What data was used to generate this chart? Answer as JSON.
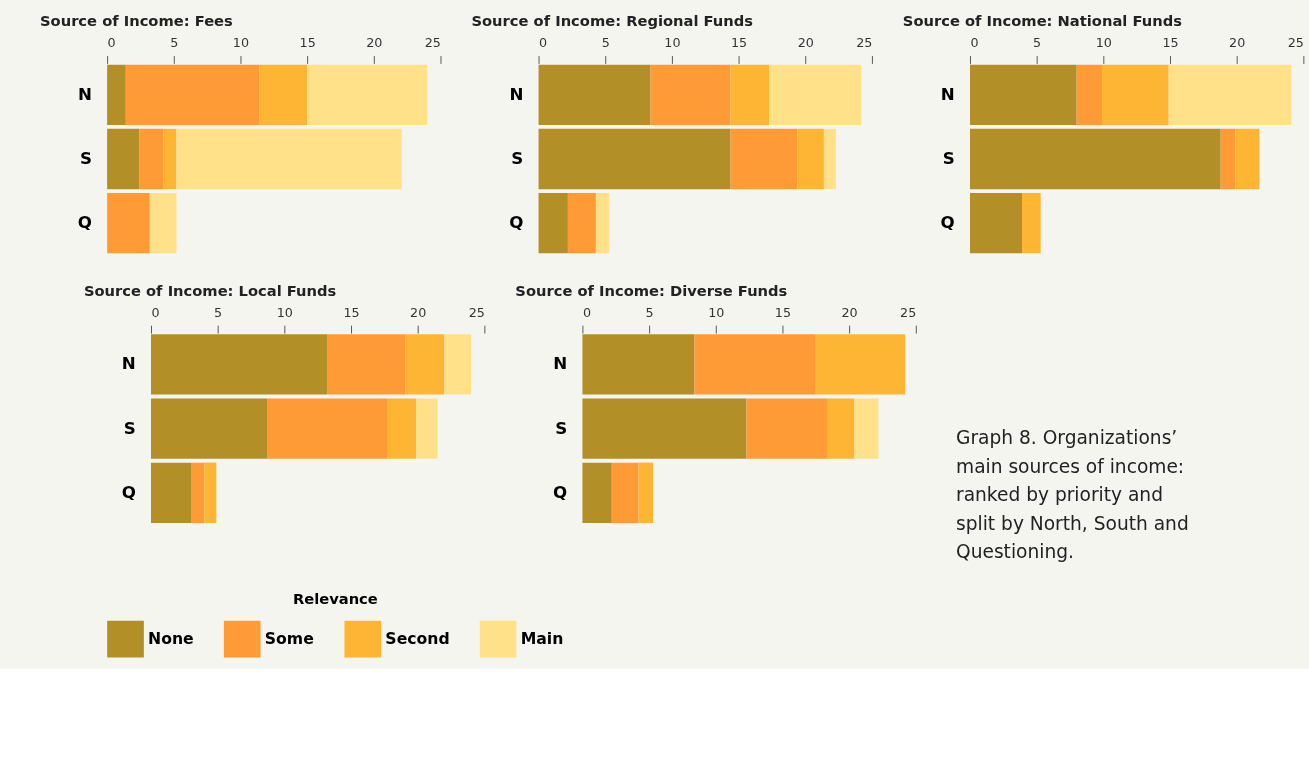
{
  "chart_data": [
    {
      "type": "bar",
      "orientation": "horizontal",
      "stacked": true,
      "title": "Source of Income: Fees",
      "categories": [
        "N",
        "S",
        "Q"
      ],
      "xlim": [
        0,
        25
      ],
      "xticks": [
        0,
        5,
        10,
        15,
        20,
        25
      ],
      "grid": false,
      "legend": "bottom",
      "legend_title": "Relevance",
      "series": [
        {
          "name": "None",
          "color": "#b38f28",
          "values": [
            1.4,
            2.4,
            0
          ]
        },
        {
          "name": "Some",
          "color": "#ff9b37",
          "values": [
            10.0,
            1.8,
            3.2
          ]
        },
        {
          "name": "Second",
          "color": "#ffb534",
          "values": [
            3.6,
            1.0,
            0
          ]
        },
        {
          "name": "Main",
          "color": "#ffe189",
          "values": [
            9.0,
            16.9,
            2.0
          ]
        }
      ]
    },
    {
      "type": "bar",
      "orientation": "horizontal",
      "stacked": true,
      "title": "Source of Income: Regional Funds",
      "categories": [
        "N",
        "S",
        "Q"
      ],
      "xlim": [
        0,
        25
      ],
      "xticks": [
        0,
        5,
        10,
        15,
        20,
        25
      ],
      "grid": false,
      "series": [
        {
          "name": "None",
          "color": "#b38f28",
          "values": [
            8.4,
            14.4,
            2.2
          ]
        },
        {
          "name": "Some",
          "color": "#ff9b37",
          "values": [
            6.0,
            5.0,
            2.1
          ]
        },
        {
          "name": "Second",
          "color": "#ffb534",
          "values": [
            2.9,
            2.0,
            0
          ]
        },
        {
          "name": "Main",
          "color": "#ffe189",
          "values": [
            6.9,
            0.9,
            1.0
          ]
        }
      ]
    },
    {
      "type": "bar",
      "orientation": "horizontal",
      "stacked": true,
      "title": "Source of Income: National Funds",
      "categories": [
        "N",
        "S",
        "Q"
      ],
      "xlim": [
        0,
        25
      ],
      "xticks": [
        0,
        5,
        10,
        15,
        20,
        25
      ],
      "grid": false,
      "series": [
        {
          "name": "None",
          "color": "#b38f28",
          "values": [
            8.0,
            18.8,
            3.9
          ]
        },
        {
          "name": "Some",
          "color": "#ff9b37",
          "values": [
            1.9,
            1.1,
            0
          ]
        },
        {
          "name": "Second",
          "color": "#ffb534",
          "values": [
            5.0,
            1.8,
            1.4
          ]
        },
        {
          "name": "Main",
          "color": "#ffe189",
          "values": [
            9.2,
            0,
            0
          ]
        }
      ]
    },
    {
      "type": "bar",
      "orientation": "horizontal",
      "stacked": true,
      "title": "Source of Income: Local Funds",
      "categories": [
        "N",
        "S",
        "Q"
      ],
      "xlim": [
        0,
        25
      ],
      "xticks": [
        0,
        5,
        10,
        15,
        20,
        25
      ],
      "grid": false,
      "series": [
        {
          "name": "None",
          "color": "#b38f28",
          "values": [
            13.2,
            8.7,
            3.0
          ]
        },
        {
          "name": "Some",
          "color": "#ff9b37",
          "values": [
            5.9,
            9.0,
            1.0
          ]
        },
        {
          "name": "Second",
          "color": "#ffb534",
          "values": [
            2.9,
            2.2,
            0.9
          ]
        },
        {
          "name": "Main",
          "color": "#ffe189",
          "values": [
            2.0,
            1.6,
            0
          ]
        }
      ]
    },
    {
      "type": "bar",
      "orientation": "horizontal",
      "stacked": true,
      "title": "Source of Income: Diverse Funds",
      "categories": [
        "N",
        "S",
        "Q"
      ],
      "xlim": [
        0,
        25
      ],
      "xticks": [
        0,
        5,
        10,
        15,
        20,
        25
      ],
      "grid": false,
      "series": [
        {
          "name": "None",
          "color": "#b38f28",
          "values": [
            8.4,
            12.3,
            2.2
          ]
        },
        {
          "name": "Some",
          "color": "#ff9b37",
          "values": [
            9.1,
            6.1,
            2.0
          ]
        },
        {
          "name": "Second",
          "color": "#ffb534",
          "values": [
            6.7,
            2.0,
            1.1
          ]
        },
        {
          "name": "Main",
          "color": "#ffe189",
          "values": [
            0,
            1.8,
            0
          ]
        }
      ]
    },
    {
      "type": "other",
      "annotations": [
        "Graph 8. Organizations’ main sources of income: ranked by priority and split by North, South and Questioning."
      ]
    }
  ]
}
